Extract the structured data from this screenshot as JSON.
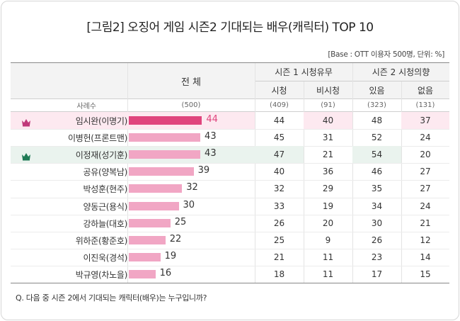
{
  "title": "[그림2] 오징어 게임 시즌2 기대되는 배우(캐릭터) TOP 10",
  "base_note": "[Base : OTT 이용자 500명, 단위: %]",
  "question": "Q. 다음 중 시즌 2에서 기대되는 캐릭터(배우)는 누구입니까?",
  "header": {
    "total": "전 체",
    "group1": "시즌 1 시청유무",
    "group2": "시즌 2 시청의향",
    "sub": [
      "시청",
      "비시청",
      "있음",
      "없음"
    ],
    "count_label": "사례수",
    "counts": [
      "(500)",
      "(409)",
      "(91)",
      "(323)",
      "(131)"
    ]
  },
  "colors": {
    "bar_highlight": "#e0457d",
    "bar_normal": "#f1a6c4",
    "row_highlight_pink": "#fde9f0",
    "row_highlight_green": "#eaf3ee",
    "crown_pink": "#c0397a",
    "crown_green": "#1f7a55"
  },
  "chart_data": {
    "type": "bar",
    "categories": [
      "임시완(이명기)",
      "이병헌(프론트맨)",
      "이정재(성기훈)",
      "공유(양복남)",
      "박성훈(현주)",
      "양동근(용식)",
      "강하늘(대호)",
      "위하준(황준호)",
      "이진욱(경석)",
      "박규영(차노을)"
    ],
    "values": [
      44,
      43,
      43,
      39,
      32,
      30,
      25,
      22,
      19,
      16
    ],
    "table": {
      "columns": [
        "시청",
        "비시청",
        "있음",
        "없음"
      ],
      "rows": [
        [
          44,
          40,
          48,
          37
        ],
        [
          45,
          31,
          52,
          24
        ],
        [
          47,
          21,
          54,
          20
        ],
        [
          40,
          36,
          46,
          27
        ],
        [
          32,
          29,
          35,
          27
        ],
        [
          33,
          19,
          34,
          24
        ],
        [
          26,
          20,
          30,
          21
        ],
        [
          25,
          9,
          26,
          12
        ],
        [
          21,
          11,
          23,
          14
        ],
        [
          18,
          11,
          17,
          15
        ]
      ]
    },
    "highlight_rows": [
      0,
      2
    ],
    "highlight_cells": [
      [
        0,
        1
      ],
      [
        0,
        3
      ],
      [
        2,
        0
      ],
      [
        2,
        2
      ]
    ]
  }
}
